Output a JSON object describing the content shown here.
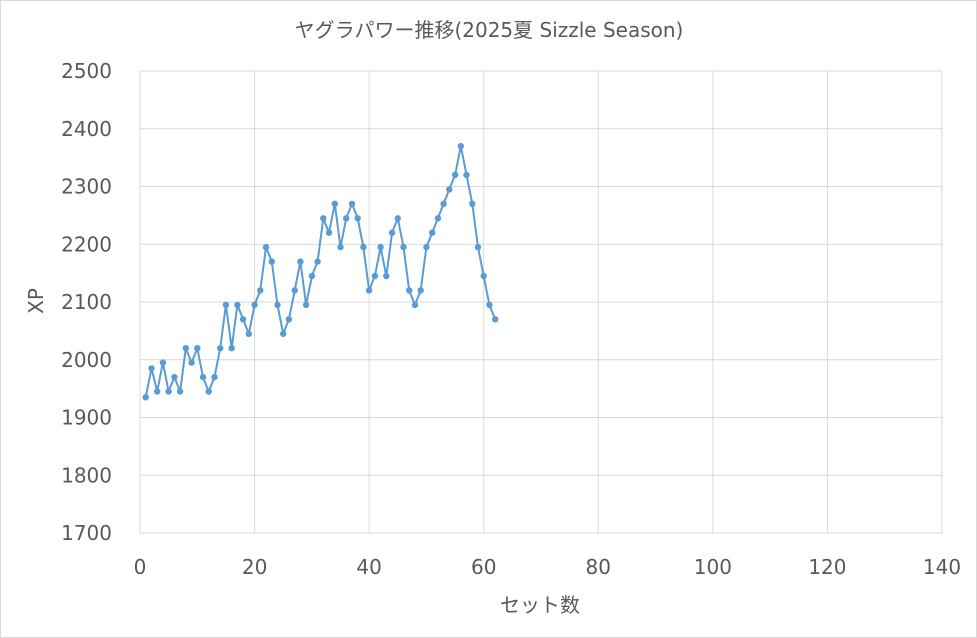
{
  "chart_data": {
    "type": "line",
    "title": "ヤグラパワー推移(2025夏 Sizzle Season)",
    "xlabel": "セット数",
    "ylabel": "XP",
    "xlim": [
      0,
      140
    ],
    "ylim": [
      1700,
      2500
    ],
    "xticks": [
      0,
      20,
      40,
      60,
      80,
      100,
      120,
      140
    ],
    "yticks": [
      1700,
      1800,
      1900,
      2000,
      2100,
      2200,
      2300,
      2400,
      2500
    ],
    "grid": true,
    "legend": "none",
    "series": [
      {
        "color": "#5b9bd5",
        "x": [
          1,
          2,
          3,
          4,
          5,
          6,
          7,
          8,
          9,
          10,
          11,
          12,
          13,
          14,
          15,
          16,
          17,
          18,
          19,
          20,
          21,
          22,
          23,
          24,
          25,
          26,
          27,
          28,
          29,
          30,
          31,
          32,
          33,
          34,
          35,
          36,
          37,
          38,
          39,
          40,
          41,
          42,
          43,
          44,
          45,
          46,
          47,
          48,
          49,
          50,
          51,
          52,
          53,
          54,
          55,
          56,
          57,
          58,
          59,
          60,
          61,
          62
        ],
        "y": [
          1935,
          1985,
          1945,
          1995,
          1945,
          1970,
          1945,
          2020,
          1995,
          2020,
          1970,
          1945,
          1970,
          2020,
          2095,
          2020,
          2095,
          2070,
          2045,
          2095,
          2120,
          2195,
          2170,
          2095,
          2045,
          2070,
          2120,
          2170,
          2095,
          2145,
          2170,
          2245,
          2220,
          2270,
          2195,
          2245,
          2270,
          2245,
          2195,
          2120,
          2145,
          2195,
          2145,
          2220,
          2245,
          2195,
          2120,
          2095,
          2120,
          2195,
          2220,
          2245,
          2270,
          2295,
          2320,
          2370,
          2320,
          2270,
          2195,
          2145,
          2095,
          2070
        ]
      }
    ]
  }
}
